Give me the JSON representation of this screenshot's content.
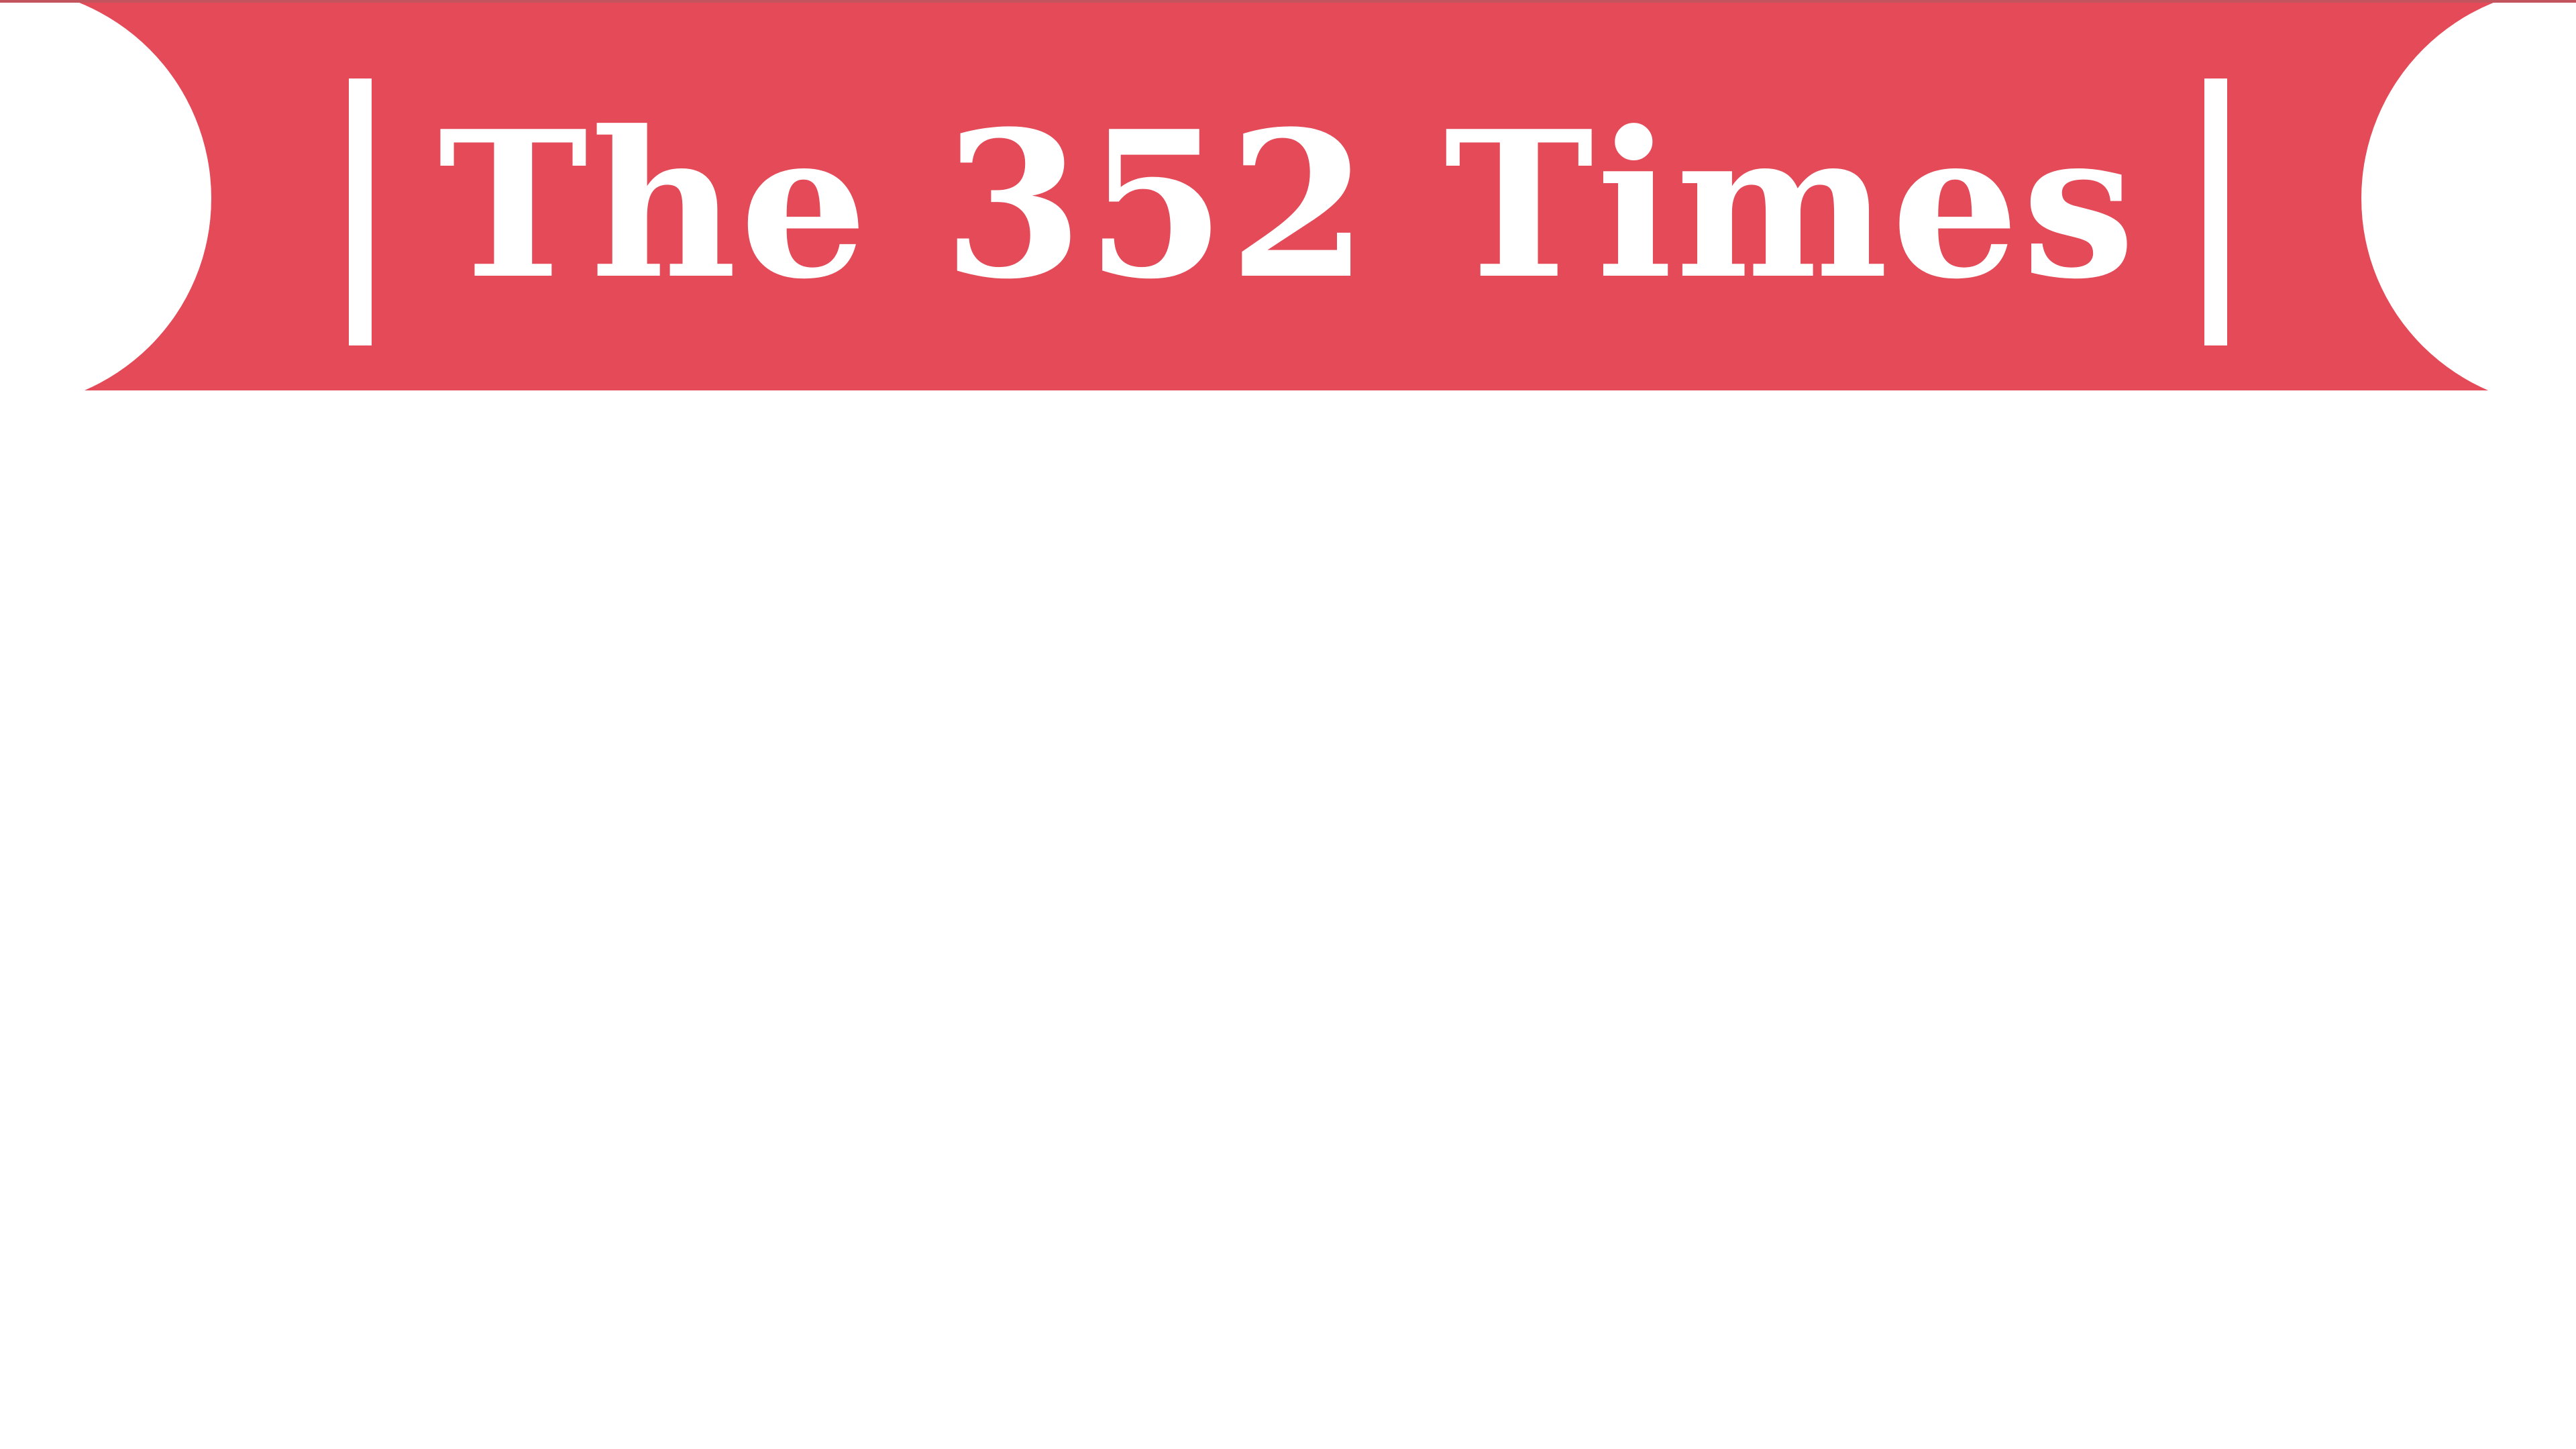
{
  "masthead": {
    "title": "The 352 Times",
    "background_color": "#e44a57",
    "text_color": "#ffffff"
  }
}
